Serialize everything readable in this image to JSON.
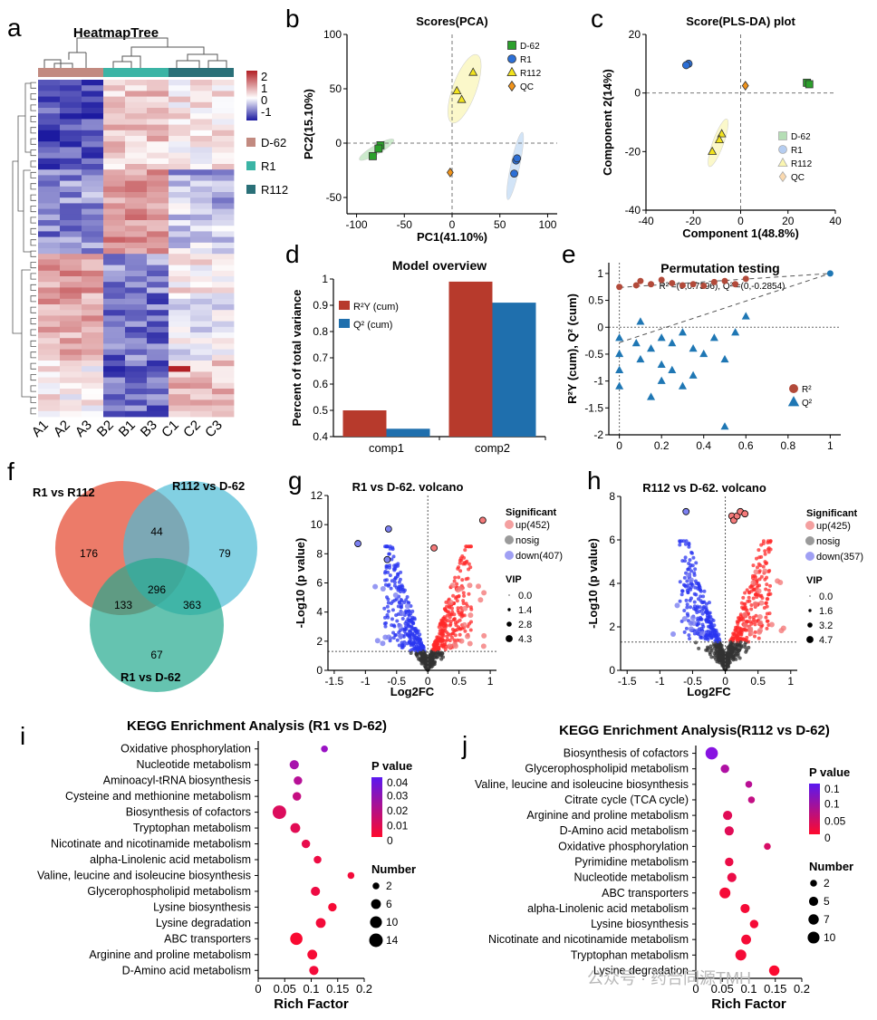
{
  "panel_letters": {
    "a": "a",
    "b": "b",
    "c": "c",
    "d": "d",
    "e": "e",
    "f": "f",
    "g": "g",
    "h": "h",
    "i": "i",
    "j": "j"
  },
  "heatmap": {
    "title": "HeatmapTree",
    "columns": [
      "A1",
      "A2",
      "A3",
      "B2",
      "B1",
      "B3",
      "C1",
      "C2",
      "C3"
    ],
    "scale_ticks": [
      "2",
      "1",
      "0",
      "-1"
    ],
    "groups": [
      {
        "label": "D-62",
        "color": "#c28a80"
      },
      {
        "label": "R1",
        "color": "#3bb4a5"
      },
      {
        "label": "R112",
        "color": "#2a7078"
      }
    ],
    "low_color": "#1c1aa0",
    "mid_color": "#ffffff",
    "high_color": "#b21f24"
  },
  "watermark": "公众号 · 药合同源TMH",
  "chart_data": [
    {
      "panel": "b",
      "type": "scatter",
      "title": "Scores(PCA)",
      "xlabel": "PC1(41.10%)",
      "ylabel": "PC2(15.10%)",
      "xlim": [
        -110,
        110
      ],
      "ylim": [
        -65,
        100
      ],
      "xticks": [
        -100,
        -50,
        0,
        50,
        100
      ],
      "yticks": [
        -50,
        0,
        50,
        100
      ],
      "series": [
        {
          "name": "D-62",
          "color": "#2ca02c",
          "marker": "square",
          "x": [
            -75,
            -77,
            -83
          ],
          "y": [
            -2,
            -5,
            -12
          ]
        },
        {
          "name": "R1",
          "color": "#2c6fd6",
          "marker": "circle",
          "x": [
            65,
            67,
            68
          ],
          "y": [
            -28,
            -16,
            -14
          ]
        },
        {
          "name": "R112",
          "color": "#f2e31d",
          "marker": "triangle",
          "x": [
            5,
            10,
            22
          ],
          "y": [
            48,
            40,
            65
          ]
        },
        {
          "name": "QC",
          "color": "#f0931b",
          "marker": "diamond",
          "x": [
            -2
          ],
          "y": [
            -27
          ]
        }
      ]
    },
    {
      "panel": "c",
      "type": "scatter",
      "title": "Score(PLS-DA) plot",
      "xlabel": "Component 1(48.8%)",
      "ylabel": "Component 2(14%)",
      "xlim": [
        -40,
        40
      ],
      "ylim": [
        -40,
        20
      ],
      "xticks": [
        -40,
        -20,
        0,
        20,
        40
      ],
      "yticks": [
        -40,
        -20,
        0,
        20
      ],
      "series": [
        {
          "name": "D-62",
          "color": "#2ca02c",
          "marker": "square",
          "x": [
            28,
            29
          ],
          "y": [
            3.5,
            3
          ]
        },
        {
          "name": "R1",
          "color": "#2c6fd6",
          "marker": "circle",
          "x": [
            -22,
            -23
          ],
          "y": [
            10,
            9.5
          ]
        },
        {
          "name": "R112",
          "color": "#f2e31d",
          "marker": "triangle",
          "x": [
            -8,
            -9,
            -12
          ],
          "y": [
            -14,
            -16,
            -20
          ]
        },
        {
          "name": "QC",
          "color": "#f0931b",
          "marker": "diamond",
          "x": [
            2
          ],
          "y": [
            2.5
          ]
        }
      ]
    },
    {
      "panel": "d",
      "type": "bar",
      "title": "Model overview",
      "ylabel": "Percent of total variance",
      "categories": [
        "comp1",
        "comp2"
      ],
      "ylim": [
        0.4,
        1
      ],
      "yticks": [
        0.4,
        0.5,
        0.6,
        0.7,
        0.8,
        0.9,
        1
      ],
      "series": [
        {
          "name": "R²Y (cum)",
          "color": "#b73a2c",
          "values": [
            0.5,
            0.99
          ]
        },
        {
          "name": "Q² (cum)",
          "color": "#1f6fad",
          "values": [
            0.43,
            0.91
          ]
        }
      ]
    },
    {
      "panel": "e",
      "type": "scatter",
      "title": "Permutation testing",
      "subtitle": "R² =(0,0.7396), Q² =(0,-0.2854)",
      "ylabel": "R²Y (cum), Q² (cum)",
      "xlim": [
        -0.05,
        1.05
      ],
      "ylim": [
        -2,
        1.2
      ],
      "xticks": [
        0,
        0.2,
        0.4,
        0.6,
        0.8,
        1
      ],
      "yticks": [
        -2,
        -1.5,
        -1,
        -0.5,
        0,
        0.5,
        1
      ],
      "r2_points": {
        "x": [
          0,
          0.08,
          0.1,
          0.15,
          0.2,
          0.25,
          0.3,
          0.35,
          0.4,
          0.45,
          0.5,
          0.55,
          0.6
        ],
        "y": [
          0.75,
          0.78,
          0.86,
          0.8,
          0.88,
          0.82,
          0.78,
          0.8,
          0.77,
          0.84,
          0.86,
          0.8,
          0.9
        ]
      },
      "q2_points": {
        "x": [
          0,
          0,
          0,
          0.08,
          0.1,
          0.1,
          0.15,
          0.15,
          0.2,
          0.2,
          0.2,
          0.25,
          0.25,
          0.3,
          0.3,
          0.35,
          0.35,
          0.4,
          0.45,
          0.5,
          0.5,
          0.55,
          0.6,
          0
        ],
        "y": [
          -0.2,
          -0.5,
          -0.8,
          -0.3,
          0.1,
          -0.6,
          -0.4,
          -1.3,
          -0.2,
          -0.7,
          -1.0,
          -0.3,
          -0.8,
          -0.1,
          -1.1,
          -0.4,
          -0.9,
          -0.5,
          -0.2,
          -0.6,
          -1.85,
          -0.1,
          0.2,
          -1.1
        ]
      },
      "end_point": {
        "x": 1,
        "y": 1
      },
      "legend": [
        "R²",
        "Q²"
      ],
      "colors": {
        "r2": "#b24a3a",
        "q2": "#1f77b4"
      }
    },
    {
      "panel": "f",
      "type": "venn",
      "sets": [
        "R1 vs R112",
        "R112 vs D-62",
        "R1 vs D-62"
      ],
      "regions": {
        "only_a": "176",
        "only_b": "79",
        "only_c": "67",
        "ab": "44",
        "ac": "133",
        "bc": "363",
        "abc": "296"
      },
      "colors": [
        "#e9644f",
        "#4dbcd6",
        "#23a98e"
      ]
    },
    {
      "panel": "g",
      "type": "scatter",
      "title": "R1 vs D-62. volcano",
      "xlabel": "Log2FC",
      "ylabel": "-Log10 (p value)",
      "xlim": [
        -1.6,
        1.1
      ],
      "ylim": [
        0,
        12
      ],
      "xticks": [
        -1.5,
        -1,
        -0.5,
        0,
        0.5,
        1
      ],
      "yticks": [
        0,
        2,
        4,
        6,
        8,
        10,
        12
      ],
      "legend_title": "Significant",
      "legend": [
        "up(452)",
        "nosig",
        "down(407)"
      ],
      "vip_title": "VIP",
      "vip_values": [
        "0.0",
        "1.4",
        "2.8",
        "4.3"
      ],
      "highlight": {
        "x": [
          0.88,
          -0.63,
          -1.12,
          -0.65,
          0.1
        ],
        "y": [
          10.3,
          9.7,
          8.7,
          7.6,
          8.4
        ]
      }
    },
    {
      "panel": "h",
      "type": "scatter",
      "title": "R112 vs D-62. volcano",
      "xlabel": "Log2FC",
      "ylabel": "-Log10 (p value)",
      "xlim": [
        -1.6,
        1.1
      ],
      "ylim": [
        0,
        8
      ],
      "xticks": [
        -1.5,
        -1,
        -0.5,
        0,
        0.5,
        1
      ],
      "yticks": [
        0,
        2,
        4,
        6,
        8
      ],
      "legend_title": "Significant",
      "legend": [
        "up(425)",
        "nosig",
        "down(357)"
      ],
      "vip_title": "VIP",
      "vip_values": [
        "0.0",
        "1.6",
        "3.2",
        "4.7"
      ],
      "highlight": {
        "x": [
          -0.6,
          0.1,
          0.13,
          0.18,
          0.23,
          0.3
        ],
        "y": [
          7.3,
          7.1,
          6.9,
          7.1,
          7.3,
          7.2
        ]
      }
    },
    {
      "panel": "i",
      "type": "scatter",
      "title": "KEGG Enrichment Analysis (R1 vs D-62)",
      "xlabel": "Rich Factor",
      "xlim": [
        0,
        0.2
      ],
      "xticks": [
        "0",
        "0.05",
        "0.1",
        "0.15",
        "0.2"
      ],
      "categories": [
        "Oxidative phosphorylation",
        "Nucleotide metabolism",
        "Aminoacyl-tRNA biosynthesis",
        "Cysteine and methionine metabolism",
        "Biosynthesis of cofactors",
        "Tryptophan metabolism",
        "Nicotinate and nicotinamide metabolism",
        "alpha-Linolenic acid metabolism",
        "Valine, leucine and isoleucine biosynthesis",
        "Glycerophospholipid metabolism",
        "Lysine biosynthesis",
        "Lysine degradation",
        "ABC transporters",
        "Arginine and proline metabolism",
        "D-Amino acid metabolism"
      ],
      "rich_factor": [
        0.125,
        0.068,
        0.075,
        0.073,
        0.04,
        0.07,
        0.09,
        0.112,
        0.175,
        0.108,
        0.14,
        0.118,
        0.072,
        0.102,
        0.105
      ],
      "p_value": [
        0.035,
        0.03,
        0.025,
        0.02,
        0.012,
        0.01,
        0.008,
        0.006,
        0.004,
        0.006,
        0.003,
        0.004,
        0.002,
        0.003,
        0.004
      ],
      "number": [
        2,
        5,
        4,
        4,
        14,
        6,
        4,
        3,
        2,
        5,
        4,
        6,
        11,
        6,
        5
      ],
      "pvalue_title": "P value",
      "pvalue_ticks": [
        "0.04",
        "0.03",
        "0.02",
        "0.01",
        "0"
      ],
      "number_title": "Number",
      "number_ticks": [
        "2",
        "6",
        "10",
        "14"
      ]
    },
    {
      "panel": "j",
      "type": "scatter",
      "title": "KEGG Enrichment Analysis(R112 vs D-62)",
      "xlabel": "Rich Factor",
      "xlim": [
        0,
        0.2
      ],
      "xticks": [
        "0",
        "0.05",
        "0.1",
        "0.15",
        "0.2"
      ],
      "categories": [
        "Biosynthesis of cofactors",
        "Glycerophospholipid metabolism",
        "Valine, leucine and isoleucine biosynthesis",
        "Citrate cycle (TCA cycle)",
        "Arginine and proline metabolism",
        "D-Amino acid metabolism",
        "Oxidative phosphorylation",
        "Pyrimidine metabolism",
        "Nucleotide metabolism",
        "ABC transporters",
        "alpha-Linolenic acid metabolism",
        "Lysine biosynthesis",
        "Nicotinate and nicotinamide metabolism",
        "Tryptophan metabolism",
        "Lysine degradation"
      ],
      "rich_factor": [
        0.03,
        0.055,
        0.1,
        0.105,
        0.06,
        0.063,
        0.135,
        0.063,
        0.068,
        0.055,
        0.093,
        0.11,
        0.095,
        0.085,
        0.148
      ],
      "p_value": [
        0.12,
        0.08,
        0.07,
        0.06,
        0.03,
        0.03,
        0.04,
        0.02,
        0.02,
        0.01,
        0.01,
        0.01,
        0.01,
        0.01,
        0.005
      ],
      "number": [
        11,
        4,
        2,
        2,
        5,
        5,
        2,
        4,
        5,
        8,
        5,
        4,
        6,
        8,
        7
      ],
      "pvalue_title": "P value",
      "pvalue_ticks": [
        "0.1",
        "0.1",
        "0.05",
        "0"
      ],
      "number_title": "Number",
      "number_ticks": [
        "2",
        "5",
        "7",
        "10"
      ]
    }
  ]
}
